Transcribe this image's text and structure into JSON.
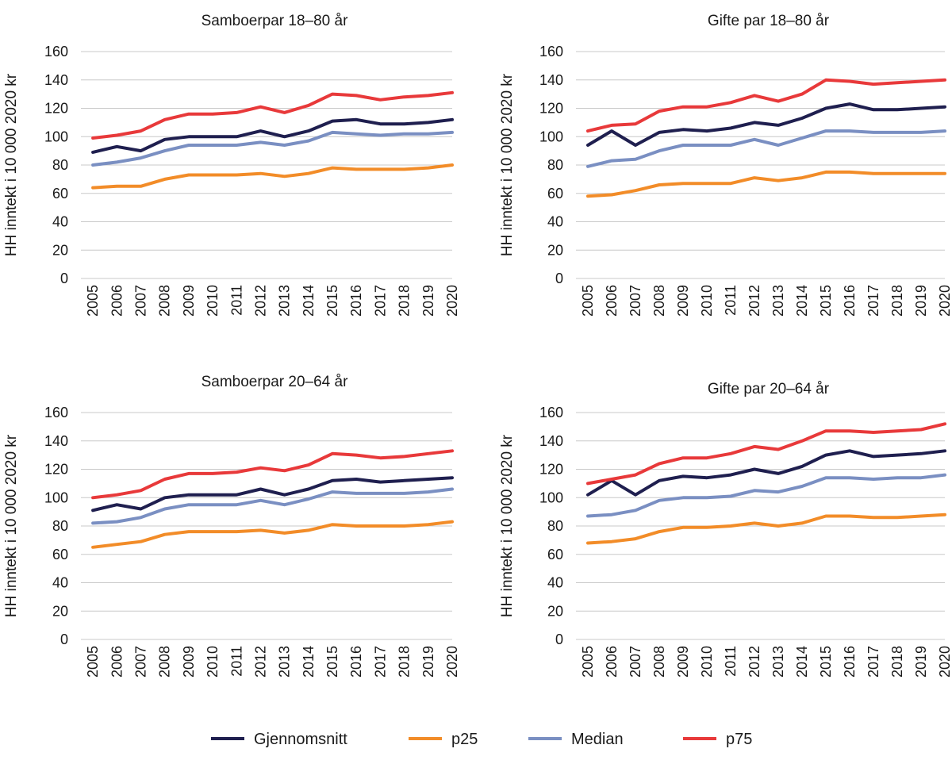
{
  "chart_data": [
    {
      "type": "line",
      "title": "Samboerpar 18–80 år",
      "ylabel": "HH inntekt i 10 000 2020 kr",
      "xlabel": "",
      "ylim": [
        0,
        160
      ],
      "yticks": [
        0,
        20,
        40,
        60,
        80,
        100,
        120,
        140,
        160
      ],
      "categories": [
        "2005",
        "2006",
        "2007",
        "2008",
        "2009",
        "2010",
        "2011",
        "2012",
        "2013",
        "2014",
        "2015",
        "2016",
        "2017",
        "2018",
        "2019",
        "2020"
      ],
      "series": [
        {
          "name": "Gjennomsnitt",
          "values": [
            89,
            93,
            90,
            98,
            100,
            100,
            100,
            104,
            100,
            104,
            111,
            112,
            109,
            109,
            110,
            112
          ]
        },
        {
          "name": "p25",
          "values": [
            64,
            65,
            65,
            70,
            73,
            73,
            73,
            74,
            72,
            74,
            78,
            77,
            77,
            77,
            78,
            80
          ]
        },
        {
          "name": "Median",
          "values": [
            80,
            82,
            85,
            90,
            94,
            94,
            94,
            96,
            94,
            97,
            103,
            102,
            101,
            102,
            102,
            103
          ]
        },
        {
          "name": "p75",
          "values": [
            99,
            101,
            104,
            112,
            116,
            116,
            117,
            121,
            117,
            122,
            130,
            129,
            126,
            128,
            129,
            131
          ]
        }
      ]
    },
    {
      "type": "line",
      "title": "Gifte par 18–80 år",
      "ylabel": "HH inntekt i 10 000 2020 kr",
      "xlabel": "",
      "ylim": [
        0,
        160
      ],
      "yticks": [
        0,
        20,
        40,
        60,
        80,
        100,
        120,
        140,
        160
      ],
      "categories": [
        "2005",
        "2006",
        "2007",
        "2008",
        "2009",
        "2010",
        "2011",
        "2012",
        "2013",
        "2014",
        "2015",
        "2016",
        "2017",
        "2018",
        "2019",
        "2020"
      ],
      "series": [
        {
          "name": "Gjennomsnitt",
          "values": [
            94,
            104,
            94,
            103,
            105,
            104,
            106,
            110,
            108,
            113,
            120,
            123,
            119,
            119,
            120,
            121
          ]
        },
        {
          "name": "p25",
          "values": [
            58,
            59,
            62,
            66,
            67,
            67,
            67,
            71,
            69,
            71,
            75,
            75,
            74,
            74,
            74,
            74
          ]
        },
        {
          "name": "Median",
          "values": [
            79,
            83,
            84,
            90,
            94,
            94,
            94,
            98,
            94,
            99,
            104,
            104,
            103,
            103,
            103,
            104
          ]
        },
        {
          "name": "p75",
          "values": [
            104,
            108,
            109,
            118,
            121,
            121,
            124,
            129,
            125,
            130,
            140,
            139,
            137,
            138,
            139,
            140
          ]
        }
      ]
    },
    {
      "type": "line",
      "title": "Samboerpar 20–64 år",
      "ylabel": "HH inntekt i 10 000 2020 kr",
      "xlabel": "",
      "ylim": [
        0,
        160
      ],
      "yticks": [
        0,
        20,
        40,
        60,
        80,
        100,
        120,
        140,
        160
      ],
      "categories": [
        "2005",
        "2006",
        "2007",
        "2008",
        "2009",
        "2010",
        "2011",
        "2012",
        "2013",
        "2014",
        "2015",
        "2016",
        "2017",
        "2018",
        "2019",
        "2020"
      ],
      "series": [
        {
          "name": "Gjennomsnitt",
          "values": [
            91,
            95,
            92,
            100,
            102,
            102,
            102,
            106,
            102,
            106,
            112,
            113,
            111,
            112,
            113,
            114
          ]
        },
        {
          "name": "p25",
          "values": [
            65,
            67,
            69,
            74,
            76,
            76,
            76,
            77,
            75,
            77,
            81,
            80,
            80,
            80,
            81,
            83
          ]
        },
        {
          "name": "Median",
          "values": [
            82,
            83,
            86,
            92,
            95,
            95,
            95,
            98,
            95,
            99,
            104,
            103,
            103,
            103,
            104,
            106
          ]
        },
        {
          "name": "p75",
          "values": [
            100,
            102,
            105,
            113,
            117,
            117,
            118,
            121,
            119,
            123,
            131,
            130,
            128,
            129,
            131,
            133
          ]
        }
      ]
    },
    {
      "type": "line",
      "title": "Gifte par 20–64 år",
      "ylabel": "HH inntekt i 10 000 2020 kr",
      "xlabel": "",
      "ylim": [
        0,
        160
      ],
      "yticks": [
        0,
        20,
        40,
        60,
        80,
        100,
        120,
        140,
        160
      ],
      "categories": [
        "2005",
        "2006",
        "2007",
        "2008",
        "2009",
        "2010",
        "2011",
        "2012",
        "2013",
        "2014",
        "2015",
        "2016",
        "2017",
        "2018",
        "2019",
        "2020"
      ],
      "series": [
        {
          "name": "Gjennomsnitt",
          "values": [
            102,
            112,
            102,
            112,
            115,
            114,
            116,
            120,
            117,
            122,
            130,
            133,
            129,
            130,
            131,
            133
          ]
        },
        {
          "name": "p25",
          "values": [
            68,
            69,
            71,
            76,
            79,
            79,
            80,
            82,
            80,
            82,
            87,
            87,
            86,
            86,
            87,
            88
          ]
        },
        {
          "name": "Median",
          "values": [
            87,
            88,
            91,
            98,
            100,
            100,
            101,
            105,
            104,
            108,
            114,
            114,
            113,
            114,
            114,
            116
          ]
        },
        {
          "name": "p75",
          "values": [
            110,
            113,
            116,
            124,
            128,
            128,
            131,
            136,
            134,
            140,
            147,
            147,
            146,
            147,
            148,
            152
          ]
        }
      ]
    }
  ],
  "legend": [
    {
      "name": "Gjennomsnitt",
      "color": "#1f1f4f"
    },
    {
      "name": "p25",
      "color": "#f28c28"
    },
    {
      "name": "Median",
      "color": "#7a8fc2"
    },
    {
      "name": "p75",
      "color": "#e8393a"
    }
  ]
}
